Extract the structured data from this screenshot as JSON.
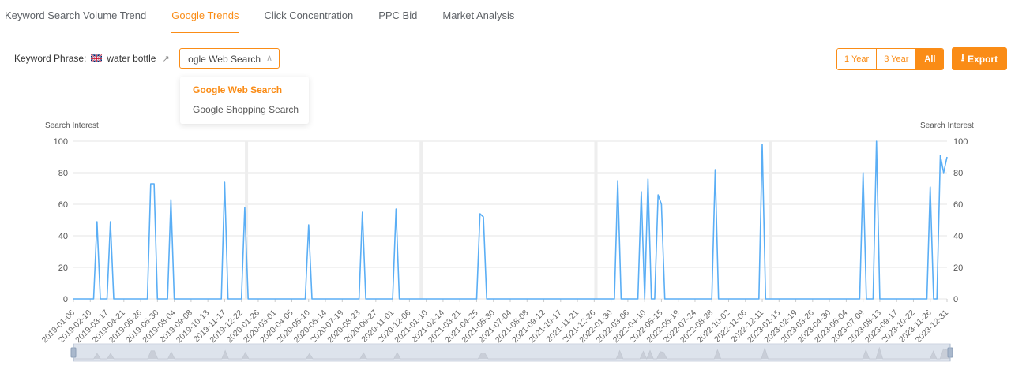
{
  "tabs": [
    {
      "label": "Keyword Search Volume Trend",
      "active": false
    },
    {
      "label": "Google Trends",
      "active": true
    },
    {
      "label": "Click Concentration",
      "active": false
    },
    {
      "label": "PPC Bid",
      "active": false
    },
    {
      "label": "Market Analysis",
      "active": false
    }
  ],
  "keyword": {
    "label": "Keyword Phrase:",
    "flag": "uk-flag-icon",
    "value": "water bottle",
    "link_icon": "external-link-icon"
  },
  "source_select": {
    "value": "Google Web Search",
    "options": [
      "Google Web Search",
      "Google Shopping Search"
    ],
    "selected": 0
  },
  "range_buttons": [
    {
      "label": "1 Year",
      "active": false
    },
    {
      "label": "3 Year",
      "active": false
    },
    {
      "label": "All",
      "active": true
    }
  ],
  "export_label": "Export",
  "colors": {
    "accent": "#fa8c16",
    "line": "#5aaef5"
  },
  "chart_data": {
    "type": "line",
    "ylabel_left": "Search Interest",
    "ylabel_right": "Search Interest",
    "ylim": [
      0,
      100
    ],
    "yticks": [
      0,
      20,
      40,
      60,
      80,
      100
    ],
    "x_start": "2019-01-06",
    "x_end": "2023-12-31",
    "x_interval_days": 7,
    "x_label_every": 5,
    "default_value": 0,
    "nonzero_points": [
      [
        "2019-02-24",
        49
      ],
      [
        "2019-03-24",
        49
      ],
      [
        "2019-06-16",
        73
      ],
      [
        "2019-06-23",
        73
      ],
      [
        "2019-07-28",
        63
      ],
      [
        "2019-11-17",
        74
      ],
      [
        "2019-12-29",
        58
      ],
      [
        "2020-05-10",
        47
      ],
      [
        "2020-08-30",
        55
      ],
      [
        "2020-11-08",
        57
      ],
      [
        "2021-05-02",
        54
      ],
      [
        "2021-05-09",
        52
      ],
      [
        "2022-02-13",
        75
      ],
      [
        "2022-04-03",
        68
      ],
      [
        "2022-04-17",
        76
      ],
      [
        "2022-05-08",
        66
      ],
      [
        "2022-05-15",
        60
      ],
      [
        "2022-09-04",
        82
      ],
      [
        "2022-12-11",
        98
      ],
      [
        "2023-07-09",
        80
      ],
      [
        "2023-08-06",
        100
      ],
      [
        "2023-11-26",
        71
      ],
      [
        "2023-12-17",
        91
      ],
      [
        "2023-12-24",
        80
      ],
      [
        "2023-12-31",
        90
      ]
    ]
  }
}
